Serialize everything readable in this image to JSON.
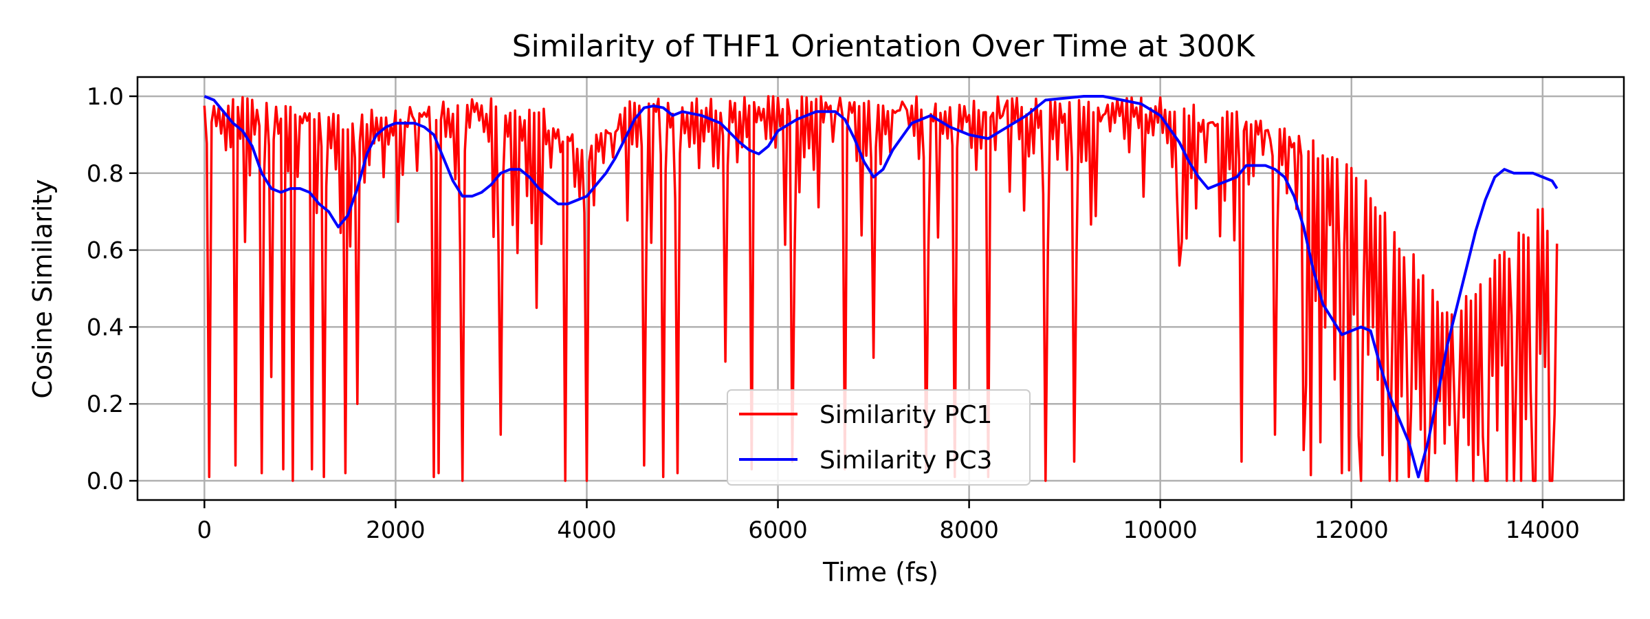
{
  "chart_data": {
    "type": "line",
    "title": "Similarity of THF1 Orientation Over Time at 300K",
    "xlabel": "Time (fs)",
    "ylabel": "Cosine Similarity",
    "xlim": [
      -700,
      14850
    ],
    "ylim": [
      -0.05,
      1.05
    ],
    "xticks": [
      0,
      2000,
      4000,
      6000,
      8000,
      10000,
      12000,
      14000
    ],
    "yticks": [
      0.0,
      0.2,
      0.4,
      0.6,
      0.8,
      1.0
    ],
    "xtick_labels": [
      "0",
      "2000",
      "4000",
      "6000",
      "8000",
      "10000",
      "12000",
      "14000"
    ],
    "ytick_labels": [
      "0.0",
      "0.2",
      "0.4",
      "0.6",
      "0.8",
      "1.0"
    ],
    "grid": true,
    "legend_position": "lower-center",
    "series": [
      {
        "name": "Similarity PC1",
        "color": "#ff0000",
        "style": "rapid oscillation between an upper envelope and sharp dips",
        "upper_envelope": {
          "x": [
            0,
            500,
            1000,
            1500,
            2000,
            2500,
            3000,
            3500,
            4000,
            4500,
            5000,
            6000,
            7000,
            8000,
            9000,
            10000,
            11000,
            11500,
            12000,
            13000,
            14000,
            14150
          ],
          "y": [
            1.0,
            1.0,
            0.98,
            0.96,
            0.97,
            0.99,
            1.0,
            0.98,
            0.88,
            1.0,
            1.0,
            1.0,
            1.0,
            1.0,
            1.0,
            1.0,
            0.95,
            0.9,
            0.85,
            0.45,
            0.72,
            0.62
          ]
        },
        "dips": {
          "x": [
            60,
            330,
            590,
            700,
            820,
            920,
            1120,
            1250,
            1480,
            1600,
            2400,
            2460,
            2700,
            3100,
            3470,
            3780,
            4000,
            4600,
            4800,
            4950,
            5450,
            5720,
            6150,
            6700,
            7000,
            7550,
            7850,
            8200,
            8800,
            9100,
            10200,
            10850,
            11200,
            11500,
            11900,
            12100,
            12400,
            12600,
            12800,
            13100,
            13400,
            13700,
            13900,
            14100
          ],
          "y": [
            0.01,
            0.04,
            0.02,
            0.27,
            0.03,
            0.0,
            0.03,
            0.01,
            0.02,
            0.2,
            0.01,
            0.02,
            0.0,
            0.12,
            0.45,
            0.0,
            0.0,
            0.04,
            0.01,
            0.02,
            0.31,
            0.03,
            0.05,
            0.03,
            0.32,
            0.03,
            0.01,
            0.01,
            0.0,
            0.05,
            0.56,
            0.05,
            0.12,
            0.08,
            0.02,
            0.0,
            0.0,
            0.01,
            0.0,
            0.0,
            0.0,
            0.0,
            0.0,
            0.0
          ]
        }
      },
      {
        "name": "Similarity PC3",
        "color": "#0000ff",
        "x": [
          0,
          100,
          200,
          300,
          400,
          500,
          600,
          700,
          800,
          900,
          1000,
          1100,
          1200,
          1300,
          1400,
          1500,
          1600,
          1700,
          1800,
          1900,
          2000,
          2100,
          2200,
          2300,
          2400,
          2500,
          2600,
          2700,
          2800,
          2900,
          3000,
          3100,
          3200,
          3300,
          3400,
          3500,
          3600,
          3700,
          3800,
          3900,
          4000,
          4100,
          4200,
          4300,
          4400,
          4500,
          4600,
          4700,
          4800,
          4900,
          5000,
          5200,
          5400,
          5600,
          5700,
          5800,
          5900,
          6000,
          6200,
          6400,
          6600,
          6700,
          6800,
          6900,
          7000,
          7100,
          7200,
          7400,
          7600,
          7800,
          8000,
          8200,
          8400,
          8600,
          8800,
          9000,
          9200,
          9400,
          9600,
          9800,
          10000,
          10200,
          10300,
          10400,
          10500,
          10600,
          10700,
          10800,
          10900,
          11000,
          11100,
          11200,
          11300,
          11400,
          11500,
          11600,
          11700,
          11800,
          11900,
          12000,
          12100,
          12200,
          12300,
          12400,
          12500,
          12600,
          12700,
          12800,
          12900,
          13000,
          13100,
          13200,
          13300,
          13400,
          13500,
          13600,
          13700,
          13800,
          13900,
          14000,
          14100,
          14150
        ],
        "y": [
          1.0,
          0.99,
          0.96,
          0.93,
          0.91,
          0.87,
          0.8,
          0.76,
          0.75,
          0.76,
          0.76,
          0.75,
          0.72,
          0.7,
          0.66,
          0.69,
          0.76,
          0.85,
          0.9,
          0.92,
          0.93,
          0.93,
          0.93,
          0.92,
          0.9,
          0.84,
          0.78,
          0.74,
          0.74,
          0.75,
          0.77,
          0.8,
          0.81,
          0.81,
          0.79,
          0.76,
          0.74,
          0.72,
          0.72,
          0.73,
          0.74,
          0.77,
          0.8,
          0.84,
          0.89,
          0.94,
          0.97,
          0.975,
          0.97,
          0.95,
          0.96,
          0.95,
          0.93,
          0.88,
          0.86,
          0.85,
          0.87,
          0.91,
          0.94,
          0.96,
          0.96,
          0.94,
          0.89,
          0.83,
          0.79,
          0.81,
          0.86,
          0.93,
          0.95,
          0.92,
          0.9,
          0.89,
          0.92,
          0.95,
          0.99,
          0.995,
          1.0,
          1.0,
          0.99,
          0.98,
          0.95,
          0.88,
          0.83,
          0.79,
          0.76,
          0.77,
          0.78,
          0.79,
          0.82,
          0.82,
          0.82,
          0.81,
          0.79,
          0.74,
          0.66,
          0.55,
          0.46,
          0.42,
          0.38,
          0.39,
          0.4,
          0.39,
          0.3,
          0.22,
          0.16,
          0.1,
          0.01,
          0.1,
          0.22,
          0.35,
          0.45,
          0.55,
          0.65,
          0.73,
          0.79,
          0.81,
          0.8,
          0.8,
          0.8,
          0.79,
          0.78,
          0.76
        ]
      }
    ]
  }
}
